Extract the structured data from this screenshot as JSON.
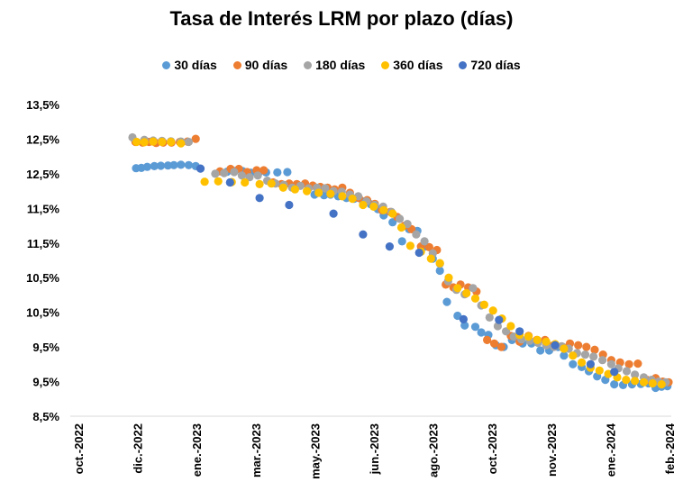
{
  "chart_data": {
    "type": "scatter",
    "title": "Tasa de Interés LRM por plazo (días)",
    "xlabel": "",
    "ylabel": "",
    "legend_position": "top",
    "grid": false,
    "y_tick_labels": [
      "13,5%",
      "12,5%",
      "12,5%",
      "11,5%",
      "11,5%",
      "10,5%",
      "10,5%",
      "9,5%",
      "9,5%",
      "8,5%"
    ],
    "x_tick_labels": [
      "oct.-2022",
      "dic.-2022",
      "ene.-2023",
      "mar.-2023",
      "may.-2023",
      "jun.-2023",
      "ago.-2023",
      "oct.-2023",
      "nov.-2023",
      "ene.-2024",
      "feb.-2024"
    ],
    "x_range": [
      0,
      10
    ],
    "y_range": [
      0,
      9
    ],
    "series": [
      {
        "name": "30 días",
        "color": "#5B9BD5",
        "points": [
          [
            0.96,
            7.16
          ],
          [
            1.05,
            7.17
          ],
          [
            1.15,
            7.2
          ],
          [
            1.27,
            7.22
          ],
          [
            1.38,
            7.23
          ],
          [
            1.5,
            7.24
          ],
          [
            1.6,
            7.25
          ],
          [
            1.72,
            7.26
          ],
          [
            1.85,
            7.25
          ],
          [
            1.97,
            7.22
          ],
          [
            2.5,
            7.06
          ],
          [
            2.63,
            7.08
          ],
          [
            2.76,
            7.08
          ],
          [
            2.9,
            7.03
          ],
          [
            3.04,
            7.04
          ],
          [
            3.16,
            7.04
          ],
          [
            3.35,
            7.04
          ],
          [
            3.52,
            7.05
          ],
          [
            3.98,
            6.4
          ],
          [
            4.14,
            6.38
          ],
          [
            4.25,
            6.4
          ],
          [
            4.38,
            6.35
          ],
          [
            4.52,
            6.3
          ],
          [
            4.65,
            6.28
          ],
          [
            4.8,
            6.2
          ],
          [
            4.93,
            6.12
          ],
          [
            5.05,
            5.98
          ],
          [
            5.15,
            5.8
          ],
          [
            5.3,
            5.6
          ],
          [
            5.46,
            5.05
          ],
          [
            5.58,
            5.4
          ],
          [
            5.72,
            5.35
          ],
          [
            5.85,
            4.9
          ],
          [
            5.98,
            4.55
          ],
          [
            6.1,
            4.2
          ],
          [
            6.22,
            3.3
          ],
          [
            6.4,
            2.9
          ],
          [
            6.52,
            2.62
          ],
          [
            6.7,
            2.58
          ],
          [
            6.8,
            2.42
          ],
          [
            6.92,
            2.35
          ],
          [
            7.05,
            2.05
          ],
          [
            7.18,
            2.0
          ],
          [
            7.32,
            2.2
          ],
          [
            7.5,
            2.1
          ],
          [
            7.65,
            2.1
          ],
          [
            7.8,
            1.9
          ],
          [
            7.95,
            1.9
          ],
          [
            8.1,
            2.0
          ],
          [
            8.2,
            1.75
          ],
          [
            8.35,
            1.5
          ],
          [
            8.5,
            1.42
          ],
          [
            8.62,
            1.3
          ],
          [
            8.76,
            1.15
          ],
          [
            8.9,
            1.05
          ],
          [
            9.05,
            0.92
          ],
          [
            9.2,
            0.9
          ],
          [
            9.35,
            0.92
          ],
          [
            9.5,
            0.93
          ],
          [
            9.63,
            0.95
          ],
          [
            9.75,
            0.82
          ],
          [
            9.85,
            0.85
          ],
          [
            9.95,
            0.87
          ]
        ]
      },
      {
        "name": "90 días",
        "color": "#ED7D31",
        "points": [
          [
            0.95,
            7.92
          ],
          [
            1.07,
            7.9
          ],
          [
            1.18,
            7.92
          ],
          [
            1.3,
            7.89
          ],
          [
            1.42,
            7.9
          ],
          [
            1.56,
            7.9
          ],
          [
            1.7,
            7.92
          ],
          [
            1.83,
            7.93
          ],
          [
            1.97,
            8.01
          ],
          [
            2.38,
            7.07
          ],
          [
            2.56,
            7.14
          ],
          [
            2.7,
            7.14
          ],
          [
            2.84,
            7.05
          ],
          [
            3.0,
            7.1
          ],
          [
            3.12,
            7.1
          ],
          [
            3.28,
            6.75
          ],
          [
            3.42,
            6.7
          ],
          [
            3.55,
            6.72
          ],
          [
            3.68,
            6.7
          ],
          [
            3.82,
            6.72
          ],
          [
            3.95,
            6.66
          ],
          [
            4.08,
            6.62
          ],
          [
            4.2,
            6.6
          ],
          [
            4.32,
            6.55
          ],
          [
            4.45,
            6.6
          ],
          [
            4.58,
            6.45
          ],
          [
            4.73,
            6.3
          ],
          [
            4.87,
            6.24
          ],
          [
            5.0,
            6.13
          ],
          [
            5.12,
            5.95
          ],
          [
            5.26,
            5.9
          ],
          [
            5.38,
            5.75
          ],
          [
            5.5,
            5.5
          ],
          [
            5.62,
            5.4
          ],
          [
            5.78,
            4.9
          ],
          [
            5.92,
            4.88
          ],
          [
            6.05,
            4.8
          ],
          [
            6.2,
            3.8
          ],
          [
            6.33,
            3.72
          ],
          [
            6.45,
            3.8
          ],
          [
            6.58,
            3.72
          ],
          [
            6.72,
            3.6
          ],
          [
            6.9,
            2.2
          ],
          [
            7.02,
            2.1
          ],
          [
            7.14,
            2.0
          ],
          [
            7.3,
            2.32
          ],
          [
            7.45,
            2.15
          ],
          [
            7.6,
            2.32
          ],
          [
            7.74,
            2.2
          ],
          [
            7.88,
            2.2
          ],
          [
            8.02,
            2.05
          ],
          [
            8.18,
            2.0
          ],
          [
            8.3,
            2.1
          ],
          [
            8.44,
            2.05
          ],
          [
            8.58,
            2.0
          ],
          [
            8.72,
            1.92
          ],
          [
            8.86,
            1.78
          ],
          [
            9.0,
            1.62
          ],
          [
            9.15,
            1.55
          ],
          [
            9.3,
            1.5
          ],
          [
            9.45,
            1.52
          ],
          [
            9.6,
            1.05
          ],
          [
            9.75,
            1.1
          ],
          [
            9.87,
            1.0
          ],
          [
            9.97,
            0.98
          ]
        ]
      },
      {
        "name": "180 días",
        "color": "#A5A5A5",
        "points": [
          [
            0.9,
            8.05
          ],
          [
            1.1,
            7.98
          ],
          [
            1.25,
            7.96
          ],
          [
            1.4,
            7.95
          ],
          [
            1.55,
            7.94
          ],
          [
            1.72,
            7.93
          ],
          [
            1.85,
            7.92
          ],
          [
            2.3,
            7.0
          ],
          [
            2.45,
            7.02
          ],
          [
            2.62,
            7.05
          ],
          [
            2.75,
            6.95
          ],
          [
            2.88,
            6.9
          ],
          [
            3.02,
            6.95
          ],
          [
            3.18,
            6.8
          ],
          [
            3.32,
            6.72
          ],
          [
            3.46,
            6.68
          ],
          [
            3.6,
            6.6
          ],
          [
            3.74,
            6.65
          ],
          [
            3.88,
            6.58
          ],
          [
            4.02,
            6.6
          ],
          [
            4.16,
            6.58
          ],
          [
            4.3,
            6.5
          ],
          [
            4.44,
            6.48
          ],
          [
            4.58,
            6.4
          ],
          [
            4.72,
            6.35
          ],
          [
            4.86,
            6.2
          ],
          [
            5.0,
            6.1
          ],
          [
            5.14,
            6.05
          ],
          [
            5.28,
            5.9
          ],
          [
            5.42,
            5.7
          ],
          [
            5.55,
            5.55
          ],
          [
            5.7,
            5.25
          ],
          [
            5.84,
            5.05
          ],
          [
            5.98,
            4.7
          ],
          [
            6.1,
            4.4
          ],
          [
            6.24,
            3.9
          ],
          [
            6.38,
            3.65
          ],
          [
            6.52,
            3.52
          ],
          [
            6.66,
            3.7
          ],
          [
            6.8,
            3.2
          ],
          [
            6.94,
            2.85
          ],
          [
            7.08,
            2.6
          ],
          [
            7.22,
            2.45
          ],
          [
            7.35,
            2.3
          ],
          [
            7.48,
            2.22
          ],
          [
            7.62,
            2.18
          ],
          [
            7.76,
            2.12
          ],
          [
            7.9,
            2.05
          ],
          [
            8.03,
            2.0
          ],
          [
            8.16,
            2.02
          ],
          [
            8.28,
            1.95
          ],
          [
            8.42,
            1.82
          ],
          [
            8.56,
            1.78
          ],
          [
            8.7,
            1.72
          ],
          [
            8.85,
            1.62
          ],
          [
            9.0,
            1.5
          ],
          [
            9.12,
            1.38
          ],
          [
            9.26,
            1.3
          ],
          [
            9.4,
            1.2
          ],
          [
            9.55,
            1.12
          ],
          [
            9.68,
            1.05
          ],
          [
            9.8,
            1.0
          ],
          [
            9.92,
            0.98
          ]
        ]
      },
      {
        "name": "360 días",
        "color": "#FFC000",
        "points": [
          [
            0.97,
            7.92
          ],
          [
            1.1,
            7.91
          ],
          [
            1.25,
            7.93
          ],
          [
            1.4,
            7.92
          ],
          [
            1.55,
            7.92
          ],
          [
            1.72,
            7.88
          ],
          [
            2.12,
            6.77
          ],
          [
            2.35,
            6.78
          ],
          [
            2.58,
            6.76
          ],
          [
            2.8,
            6.75
          ],
          [
            3.05,
            6.7
          ],
          [
            3.25,
            6.72
          ],
          [
            3.45,
            6.6
          ],
          [
            3.65,
            6.55
          ],
          [
            3.85,
            6.5
          ],
          [
            4.05,
            6.45
          ],
          [
            4.25,
            6.42
          ],
          [
            4.45,
            6.35
          ],
          [
            4.62,
            6.28
          ],
          [
            4.8,
            6.1
          ],
          [
            4.98,
            6.05
          ],
          [
            5.15,
            5.95
          ],
          [
            5.3,
            5.85
          ],
          [
            5.45,
            5.45
          ],
          [
            5.6,
            4.92
          ],
          [
            5.78,
            4.75
          ],
          [
            5.95,
            4.55
          ],
          [
            6.1,
            4.42
          ],
          [
            6.25,
            4.0
          ],
          [
            6.4,
            3.7
          ],
          [
            6.55,
            3.55
          ],
          [
            6.7,
            3.4
          ],
          [
            6.85,
            3.22
          ],
          [
            7.0,
            3.05
          ],
          [
            7.15,
            2.82
          ],
          [
            7.3,
            2.6
          ],
          [
            7.45,
            2.35
          ],
          [
            7.6,
            2.3
          ],
          [
            7.75,
            2.2
          ],
          [
            7.9,
            2.15
          ],
          [
            8.05,
            2.08
          ],
          [
            8.2,
            1.95
          ],
          [
            8.35,
            1.75
          ],
          [
            8.5,
            1.55
          ],
          [
            8.65,
            1.4
          ],
          [
            8.8,
            1.32
          ],
          [
            8.95,
            1.22
          ],
          [
            9.1,
            1.12
          ],
          [
            9.25,
            1.05
          ],
          [
            9.4,
            1.02
          ],
          [
            9.55,
            0.98
          ],
          [
            9.7,
            0.95
          ],
          [
            9.85,
            0.92
          ]
        ]
      },
      {
        "name": "720 días",
        "color": "#4472C4",
        "points": [
          [
            2.05,
            7.15
          ],
          [
            2.55,
            6.75
          ],
          [
            3.05,
            6.3
          ],
          [
            3.55,
            6.1
          ],
          [
            4.3,
            5.85
          ],
          [
            4.8,
            5.25
          ],
          [
            5.25,
            4.9
          ],
          [
            5.75,
            4.72
          ],
          [
            6.5,
            2.8
          ],
          [
            7.1,
            2.78
          ],
          [
            7.45,
            2.45
          ],
          [
            8.05,
            2.05
          ],
          [
            8.65,
            1.5
          ],
          [
            9.05,
            1.28
          ]
        ]
      }
    ]
  }
}
